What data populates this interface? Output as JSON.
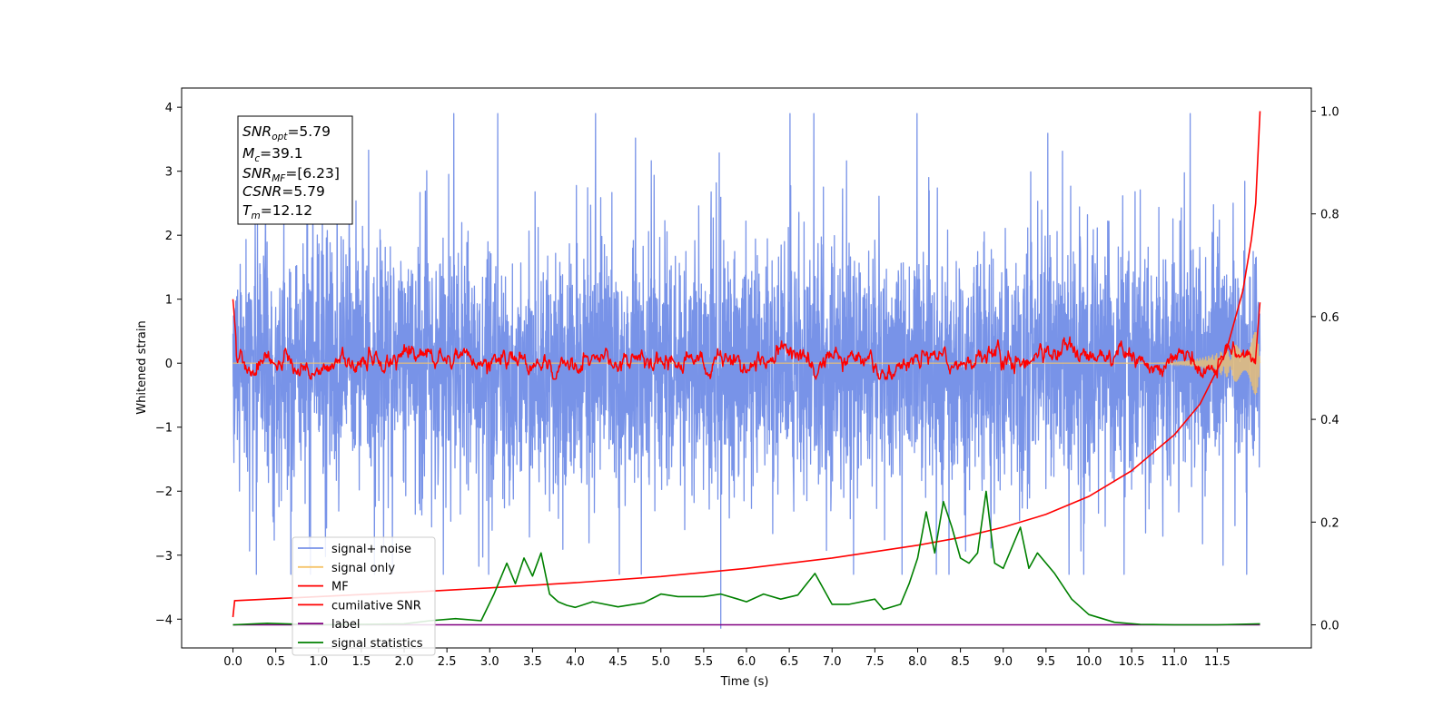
{
  "chart_data": {
    "type": "line",
    "xlabel": "Time (s)",
    "ylabel": "Whitened strain",
    "xlim": [
      -0.6,
      12.6
    ],
    "ylim": [
      -4.45,
      4.3
    ],
    "y2lim": [
      -0.045,
      1.045
    ],
    "x_ticks": [
      "0.0",
      "0.5",
      "1.0",
      "1.5",
      "2.0",
      "2.5",
      "3.0",
      "3.5",
      "4.0",
      "4.5",
      "5.0",
      "5.5",
      "6.0",
      "6.5",
      "7.0",
      "7.5",
      "8.0",
      "8.5",
      "9.0",
      "9.5",
      "10.0",
      "10.5",
      "11.0",
      "11.5"
    ],
    "y_ticks": [
      "4",
      "3",
      "2",
      "1",
      "0",
      "−1",
      "−2",
      "−3",
      "−4"
    ],
    "y2_ticks": [
      "1.0",
      "0.8",
      "0.6",
      "0.4",
      "0.2",
      "0.0"
    ],
    "grid": false,
    "legend_position": "lower-left",
    "annotation": {
      "lines": [
        {
          "sym": "SNR",
          "sub": "opt",
          "rest": "=5.79"
        },
        {
          "sym": "M",
          "sub": "c",
          "rest": "=39.1"
        },
        {
          "sym": "SNR",
          "sub": "MF",
          "rest": "=[6.23]"
        },
        {
          "sym": "CSNR",
          "sub": "",
          "rest": "=5.79"
        },
        {
          "sym": "T",
          "sub": "m",
          "rest": "=12.12"
        }
      ]
    },
    "series": [
      {
        "name": "signal+ noise",
        "color": "#7893e8",
        "axis": "left",
        "description_range": [
          -3.3,
          3.9
        ]
      },
      {
        "name": "signal only",
        "color": "#f5c46a",
        "axis": "left",
        "end_amplitude": 0.55
      },
      {
        "name": "MF",
        "color": "#ff0000",
        "axis": "left",
        "start": 1.0,
        "baseline_range": [
          -0.25,
          0.5
        ],
        "end": 0.95
      },
      {
        "name": "cumilative SNR",
        "color": "#ff0000",
        "axis": "right",
        "x": [
          0.0,
          0.02,
          1.0,
          2.0,
          3.0,
          4.0,
          5.0,
          6.0,
          7.0,
          8.0,
          8.5,
          9.0,
          9.5,
          10.0,
          10.5,
          11.0,
          11.3,
          11.6,
          11.8,
          11.9,
          11.95,
          12.0
        ],
        "values": [
          0.015,
          0.047,
          0.055,
          0.063,
          0.072,
          0.082,
          0.094,
          0.11,
          0.13,
          0.155,
          0.17,
          0.19,
          0.215,
          0.25,
          0.3,
          0.37,
          0.43,
          0.53,
          0.65,
          0.75,
          0.82,
          1.0
        ]
      },
      {
        "name": "label",
        "color": "#800080",
        "axis": "right",
        "x": [
          0.0,
          12.0
        ],
        "values": [
          0.0,
          0.0
        ]
      },
      {
        "name": "signal statistics",
        "color": "#008000",
        "axis": "right",
        "x": [
          0.0,
          0.4,
          1.0,
          2.0,
          2.3,
          2.6,
          2.9,
          3.05,
          3.2,
          3.3,
          3.4,
          3.5,
          3.6,
          3.7,
          3.8,
          3.9,
          4.0,
          4.2,
          4.5,
          4.8,
          5.0,
          5.2,
          5.5,
          5.7,
          5.9,
          6.0,
          6.2,
          6.4,
          6.6,
          6.8,
          6.9,
          7.0,
          7.2,
          7.5,
          7.6,
          7.8,
          7.9,
          8.0,
          8.1,
          8.2,
          8.3,
          8.4,
          8.5,
          8.6,
          8.7,
          8.8,
          8.9,
          9.0,
          9.1,
          9.2,
          9.3,
          9.4,
          9.6,
          9.8,
          10.0,
          10.3,
          10.6,
          11.0,
          11.5,
          12.0
        ],
        "values": [
          0.0,
          0.003,
          0.0,
          0.002,
          0.008,
          0.012,
          0.008,
          0.06,
          0.12,
          0.08,
          0.13,
          0.095,
          0.14,
          0.06,
          0.045,
          0.038,
          0.034,
          0.045,
          0.035,
          0.043,
          0.06,
          0.055,
          0.055,
          0.06,
          0.05,
          0.045,
          0.06,
          0.05,
          0.058,
          0.1,
          0.07,
          0.04,
          0.04,
          0.05,
          0.03,
          0.04,
          0.08,
          0.13,
          0.22,
          0.14,
          0.24,
          0.19,
          0.13,
          0.12,
          0.14,
          0.26,
          0.12,
          0.11,
          0.15,
          0.19,
          0.11,
          0.14,
          0.1,
          0.05,
          0.02,
          0.005,
          0.001,
          0.0,
          0.0,
          0.002
        ]
      }
    ]
  }
}
